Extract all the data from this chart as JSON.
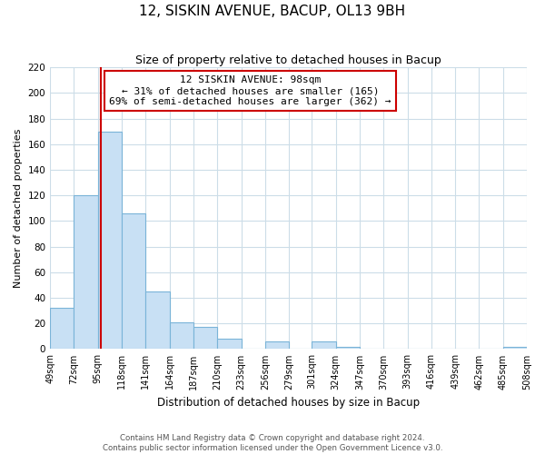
{
  "title": "12, SISKIN AVENUE, BACUP, OL13 9BH",
  "subtitle": "Size of property relative to detached houses in Bacup",
  "xlabel": "Distribution of detached houses by size in Bacup",
  "ylabel": "Number of detached properties",
  "bin_edges": [
    49,
    72,
    95,
    118,
    141,
    164,
    187,
    210,
    233,
    256,
    279,
    301,
    324,
    347,
    370,
    393,
    416,
    439,
    462,
    485,
    508
  ],
  "bar_heights": [
    32,
    120,
    170,
    106,
    45,
    21,
    17,
    8,
    0,
    6,
    0,
    6,
    2,
    0,
    0,
    0,
    0,
    0,
    0,
    2
  ],
  "bar_color": "#c8e0f4",
  "bar_edge_color": "#7ab4d8",
  "property_size": 98,
  "red_line_color": "#cc0000",
  "annotation_line1": "12 SISKIN AVENUE: 98sqm",
  "annotation_line2": "← 31% of detached houses are smaller (165)",
  "annotation_line3": "69% of semi-detached houses are larger (362) →",
  "annotation_box_color": "#ffffff",
  "annotation_box_edge_color": "#cc0000",
  "ylim": [
    0,
    220
  ],
  "yticks": [
    0,
    20,
    40,
    60,
    80,
    100,
    120,
    140,
    160,
    180,
    200,
    220
  ],
  "tick_labels": [
    "49sqm",
    "72sqm",
    "95sqm",
    "118sqm",
    "141sqm",
    "164sqm",
    "187sqm",
    "210sqm",
    "233sqm",
    "256sqm",
    "279sqm",
    "301sqm",
    "324sqm",
    "347sqm",
    "370sqm",
    "393sqm",
    "416sqm",
    "439sqm",
    "462sqm",
    "485sqm",
    "508sqm"
  ],
  "footer_line1": "Contains HM Land Registry data © Crown copyright and database right 2024.",
  "footer_line2": "Contains public sector information licensed under the Open Government Licence v3.0.",
  "grid_color": "#ccdde8",
  "background_color": "#ffffff",
  "title_fontsize": 11,
  "subtitle_fontsize": 9,
  "ylabel_fontsize": 8,
  "xlabel_fontsize": 8.5,
  "tick_fontsize": 7,
  "ytick_fontsize": 7.5,
  "annotation_fontsize": 8,
  "footer_fontsize": 6.2
}
